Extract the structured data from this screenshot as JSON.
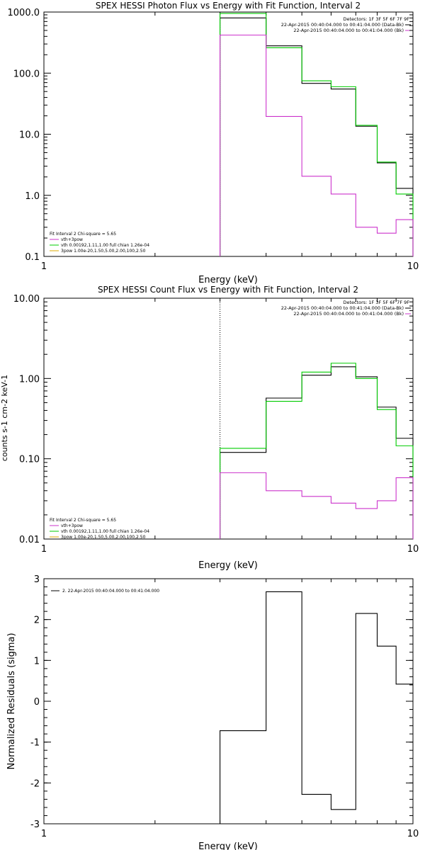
{
  "chart_data": [
    {
      "type": "line",
      "title": "SPEX HESSI Photon Flux vs Energy with Fit Function, Interval 2",
      "xlabel": "Energy (keV)",
      "ylabel": "",
      "xscale": "log",
      "yscale": "log",
      "xlim": [
        1,
        10
      ],
      "ylim": [
        0.1,
        1000
      ],
      "xticks": [
        {
          "v": 1,
          "label": "1"
        },
        {
          "v": 10,
          "label": "10"
        }
      ],
      "yticks": [
        {
          "v": 0.1,
          "label": "0.1"
        },
        {
          "v": 1,
          "label": "1.0"
        },
        {
          "v": 10,
          "label": "10.0"
        },
        {
          "v": 100,
          "label": "100.0"
        },
        {
          "v": 1000,
          "label": "1000.0"
        }
      ],
      "info_text": [
        "Detectors: 1F 3F 5F 6F 7F 9F",
        "22-Apr-2015 00:40:04.000 to 00:41:04.000 (Data-Bk)",
        "22-Apr-2015 00:40:04.000 to 00:41:04.000 (Bk)"
      ],
      "fit_text": [
        "Fit Interval 2   Chi-square = 5.65",
        "vth+3pow",
        "vth 0.00192,1.11,1.00  full chian 1.26e-04",
        "3pow 1.00e-20,1.50,5.00,2.00,100,2.50"
      ],
      "fit_colors": [
        "#000000",
        "#cc33cc",
        "#00cc00",
        "#ddaa00"
      ],
      "start_marker_x": 3.0,
      "bin_edges": [
        3.0,
        4.0,
        5.0,
        6.0,
        7.0,
        8.0,
        9.0,
        10.0
      ],
      "series": [
        {
          "name": "Data-Bk",
          "color": "#000000",
          "values": [
            800,
            280,
            68,
            55,
            13.5,
            3.4,
            1.3
          ]
        },
        {
          "name": "",
          "color": "#00cc00",
          "values": [
            950,
            260,
            75,
            60,
            14,
            3.5,
            1.05
          ]
        },
        {
          "name": "Bk",
          "color": "#cc33cc",
          "values": [
            420,
            19.5,
            2.05,
            1.05,
            0.3,
            0.24,
            0.4
          ]
        }
      ]
    },
    {
      "type": "line",
      "title": "SPEX HESSI Count Flux vs Energy with Fit Function, Interval 2",
      "xlabel": "Energy (keV)",
      "ylabel": "counts s-1 cm-2 keV-1",
      "xscale": "log",
      "yscale": "log",
      "xlim": [
        1,
        10
      ],
      "ylim": [
        0.01,
        10
      ],
      "xticks": [
        {
          "v": 1,
          "label": "1"
        },
        {
          "v": 10,
          "label": "10"
        }
      ],
      "yticks": [
        {
          "v": 0.01,
          "label": "0.01"
        },
        {
          "v": 0.1,
          "label": "0.10"
        },
        {
          "v": 1,
          "label": "1.00"
        },
        {
          "v": 10,
          "label": "10.00"
        }
      ],
      "info_text": [
        "Detectors: 1F 3F 5F 6F 7F 9F",
        "22-Apr-2015 00:40:04.000 to 00:41:04.000 (Data-Bk)",
        "22-Apr-2015 00:40:04.000 to 00:41:04.000 (Bk)"
      ],
      "fit_text": [
        "Fit Interval 2   Chi-square = 5.65",
        "vth+3pow",
        "vth 0.00192,1.11,1.00  full chian 1.26e-04",
        "3pow 1.00e-20,1.50,5.00,2.00,100,2.50"
      ],
      "fit_colors": [
        "#000000",
        "#cc33cc",
        "#00cc00",
        "#ddaa00"
      ],
      "start_marker_x": 3.0,
      "bin_edges": [
        3.0,
        4.0,
        5.0,
        6.0,
        7.0,
        8.0,
        9.0,
        10.0
      ],
      "series": [
        {
          "name": "Data-Bk",
          "color": "#000000",
          "values": [
            0.12,
            0.57,
            1.1,
            1.4,
            1.05,
            0.44,
            0.18
          ]
        },
        {
          "name": "",
          "color": "#00cc00",
          "values": [
            0.135,
            0.52,
            1.2,
            1.55,
            1.0,
            0.41,
            0.145
          ]
        },
        {
          "name": "Bk",
          "color": "#cc33cc",
          "values": [
            0.067,
            0.04,
            0.034,
            0.028,
            0.024,
            0.03,
            0.058
          ]
        }
      ]
    },
    {
      "type": "line",
      "title": "",
      "xlabel": "Energy (keV)",
      "ylabel": "Normalized Residuals (sigma)",
      "xscale": "log",
      "yscale": "linear",
      "xlim": [
        1,
        10
      ],
      "ylim": [
        -3,
        3
      ],
      "xticks": [
        {
          "v": 1,
          "label": "1"
        },
        {
          "v": 10,
          "label": "10"
        }
      ],
      "yticks": [
        {
          "v": -3,
          "label": "-3"
        },
        {
          "v": -2,
          "label": "-2"
        },
        {
          "v": -1,
          "label": "-1"
        },
        {
          "v": 0,
          "label": "0"
        },
        {
          "v": 1,
          "label": "1"
        },
        {
          "v": 2,
          "label": "2"
        },
        {
          "v": 3,
          "label": "3"
        }
      ],
      "legend_text": "2. 22-Apr-2015 00:40:04.000 to 00:41:04.000",
      "bin_edges": [
        3.0,
        4.0,
        5.0,
        6.0,
        7.0,
        8.0,
        9.0,
        10.0
      ],
      "series": [
        {
          "name": "2. 22-Apr-2015 00:40:04.000 to 00:41:04.000",
          "color": "#000000",
          "values": [
            -0.72,
            2.68,
            -2.28,
            -2.65,
            2.15,
            1.35,
            0.42
          ]
        }
      ]
    }
  ]
}
